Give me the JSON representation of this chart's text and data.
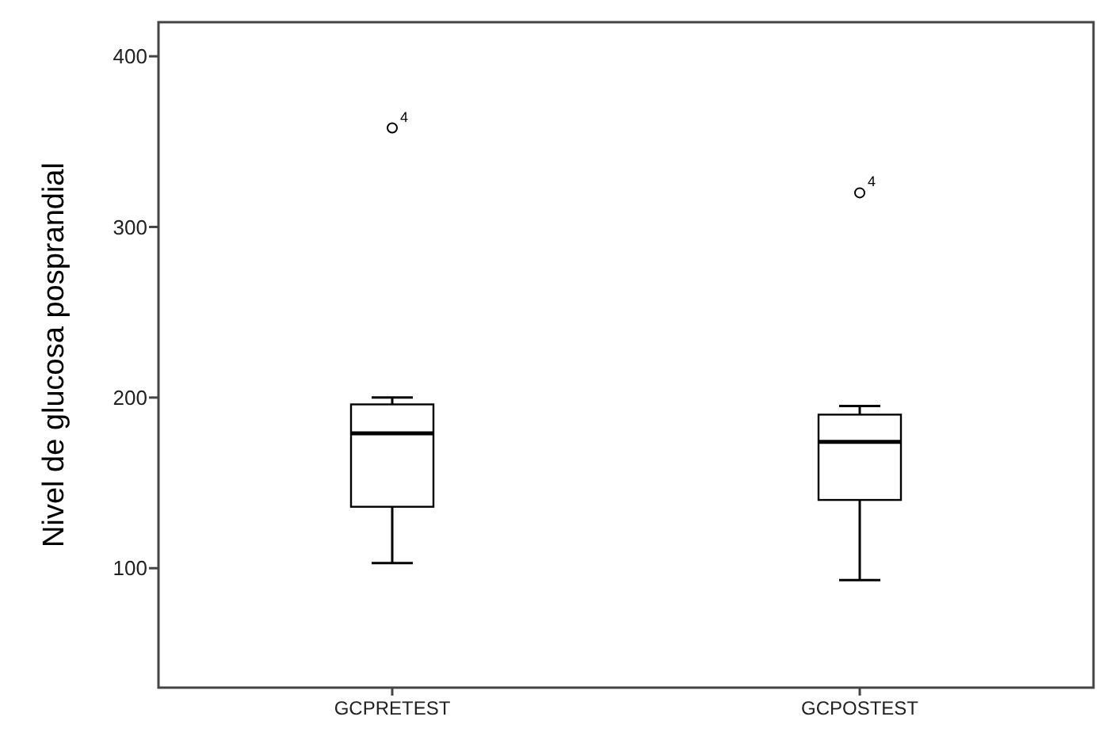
{
  "chart_data": {
    "type": "box",
    "ylabel": "Nivel de glucosa posprandial",
    "categories": [
      "GCPRETEST",
      "GCPOSTEST"
    ],
    "boxes": [
      {
        "low": 103,
        "q1": 136,
        "median": 179,
        "q3": 196,
        "high": 200,
        "outliers": [
          358
        ]
      },
      {
        "low": 93,
        "q1": 140,
        "median": 174,
        "q3": 190,
        "high": 195,
        "outliers": [
          320
        ]
      }
    ],
    "ylim": [
      30,
      420
    ],
    "yticks": [
      100,
      200,
      300,
      400
    ],
    "grid": false,
    "annotations": [
      "4",
      "4"
    ]
  }
}
